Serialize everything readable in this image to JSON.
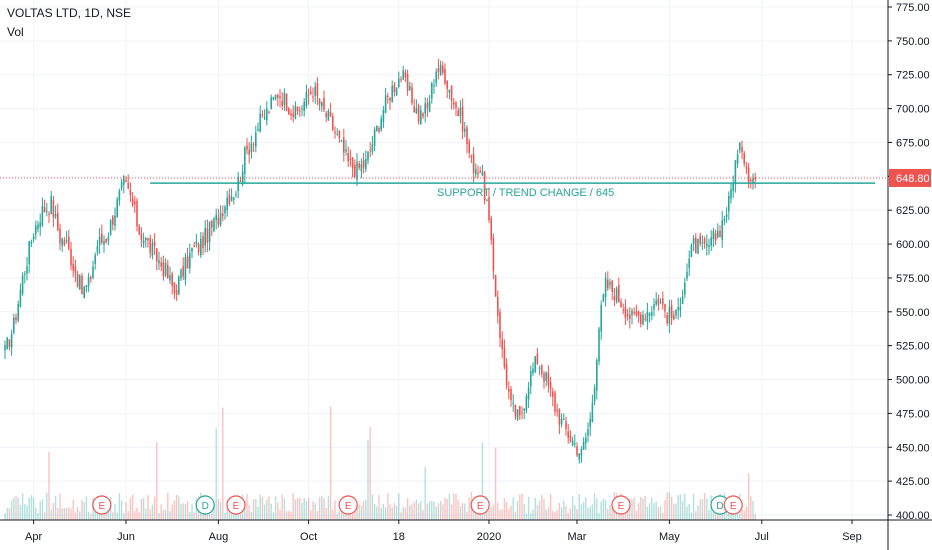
{
  "header": {
    "symbol": "VOLTAS LTD, 1D, NSE",
    "volume_label": "Vol"
  },
  "colors": {
    "up": "#26a69a",
    "down": "#ef5350",
    "grid": "#f0f3fa",
    "axis": "#131722",
    "support_line": "#26a69a",
    "price_line": "#ef5350",
    "dividend": "#26a69a",
    "earnings": "#ef5350"
  },
  "chart_data": {
    "type": "candlestick",
    "title": "VOLTAS LTD, 1D, NSE",
    "y_axis": {
      "min": 400,
      "max": 775,
      "ticks": [
        "775.00",
        "750.00",
        "725.00",
        "700.00",
        "675.00",
        "650.00",
        "625.00",
        "600.00",
        "575.00",
        "550.00",
        "525.00",
        "500.00",
        "475.00",
        "450.00",
        "425.00",
        "400.00"
      ]
    },
    "x_axis": {
      "labels": [
        "Apr",
        "Jun",
        "Aug",
        "Oct",
        "18",
        "2020",
        "Mar",
        "May",
        "Jul",
        "Sep"
      ],
      "label_bar_index": [
        13,
        55,
        97,
        138,
        179,
        220,
        260,
        302,
        344,
        385
      ]
    },
    "last_price": "648.80",
    "grid": true,
    "annotation": {
      "text": "SUPPORT / TREND CHANGE / 645",
      "value": 645
    },
    "anchors": [
      [
        0,
        520
      ],
      [
        4,
        540
      ],
      [
        8,
        575
      ],
      [
        13,
        610
      ],
      [
        17,
        625
      ],
      [
        21,
        630
      ],
      [
        25,
        605
      ],
      [
        28,
        600
      ],
      [
        32,
        580
      ],
      [
        35,
        565
      ],
      [
        38,
        570
      ],
      [
        42,
        600
      ],
      [
        46,
        605
      ],
      [
        50,
        625
      ],
      [
        54,
        645
      ],
      [
        57,
        635
      ],
      [
        61,
        610
      ],
      [
        65,
        600
      ],
      [
        69,
        590
      ],
      [
        73,
        580
      ],
      [
        77,
        565
      ],
      [
        81,
        580
      ],
      [
        85,
        595
      ],
      [
        89,
        600
      ],
      [
        93,
        610
      ],
      [
        97,
        620
      ],
      [
        101,
        635
      ],
      [
        105,
        640
      ],
      [
        109,
        665
      ],
      [
        113,
        680
      ],
      [
        116,
        690
      ],
      [
        120,
        700
      ],
      [
        124,
        712
      ],
      [
        128,
        705
      ],
      [
        132,
        695
      ],
      [
        136,
        705
      ],
      [
        140,
        715
      ],
      [
        144,
        700
      ],
      [
        148,
        690
      ],
      [
        152,
        675
      ],
      [
        156,
        660
      ],
      [
        160,
        655
      ],
      [
        164,
        660
      ],
      [
        168,
        680
      ],
      [
        172,
        700
      ],
      [
        176,
        715
      ],
      [
        180,
        725
      ],
      [
        184,
        710
      ],
      [
        188,
        695
      ],
      [
        192,
        700
      ],
      [
        196,
        730
      ],
      [
        200,
        725
      ],
      [
        204,
        705
      ],
      [
        208,
        690
      ],
      [
        212,
        660
      ],
      [
        216,
        655
      ],
      [
        219,
        630
      ],
      [
        222,
        580
      ],
      [
        226,
        520
      ],
      [
        230,
        480
      ],
      [
        234,
        470
      ],
      [
        238,
        500
      ],
      [
        242,
        515
      ],
      [
        246,
        500
      ],
      [
        250,
        480
      ],
      [
        254,
        465
      ],
      [
        258,
        455
      ],
      [
        262,
        445
      ],
      [
        266,
        470
      ],
      [
        268,
        500
      ],
      [
        270,
        540
      ],
      [
        273,
        570
      ],
      [
        277,
        565
      ],
      [
        281,
        555
      ],
      [
        285,
        545
      ],
      [
        289,
        548
      ],
      [
        293,
        552
      ],
      [
        297,
        560
      ],
      [
        301,
        548
      ],
      [
        305,
        545
      ],
      [
        309,
        575
      ],
      [
        313,
        600
      ],
      [
        317,
        595
      ],
      [
        321,
        600
      ],
      [
        325,
        612
      ],
      [
        329,
        630
      ],
      [
        332,
        660
      ],
      [
        335,
        672
      ],
      [
        338,
        652
      ],
      [
        341,
        648
      ]
    ],
    "volume_range_note": "Daily volume bars shown along the bottom of the price pane",
    "events": [
      {
        "type": "earnings",
        "label": "E",
        "bar": 44
      },
      {
        "type": "dividend",
        "label": "D",
        "bar": 91
      },
      {
        "type": "earnings",
        "label": "E",
        "bar": 105
      },
      {
        "type": "earnings",
        "label": "E",
        "bar": 156
      },
      {
        "type": "earnings",
        "label": "E",
        "bar": 216
      },
      {
        "type": "earnings",
        "label": "E",
        "bar": 280
      },
      {
        "type": "dividend",
        "label": "D",
        "bar": 325
      },
      {
        "type": "earnings",
        "label": "E",
        "bar": 331
      }
    ]
  }
}
